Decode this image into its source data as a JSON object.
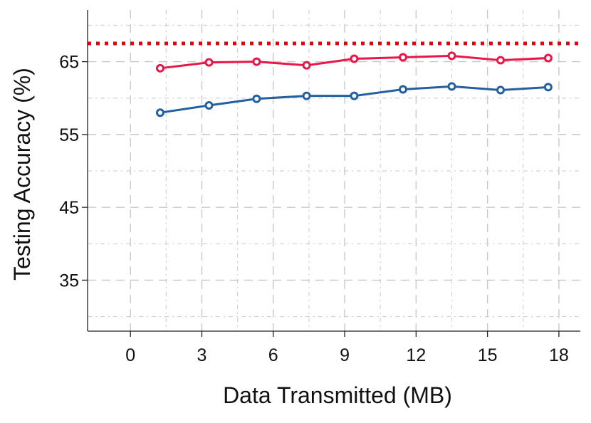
{
  "chart_data": {
    "type": "line",
    "title": "",
    "xlabel": "Data Transmitted (MB)",
    "ylabel": "Testing Accuracy (%)",
    "xlim": [
      -1.8,
      18.9
    ],
    "ylim": [
      28,
      72.1
    ],
    "xticks": [
      0,
      3,
      6,
      9,
      12,
      15,
      18
    ],
    "xtick_labels": [
      "0",
      "3",
      "6",
      "9",
      "12",
      "15",
      "18"
    ],
    "yticks": [
      35,
      45,
      55,
      65
    ],
    "ytick_labels": [
      "35",
      "45",
      "55",
      "65"
    ],
    "minor_yticks": [
      30,
      40,
      50,
      60,
      70
    ],
    "grid": true,
    "legend": "none",
    "reference_line": {
      "y": 67.5,
      "style": "dotted",
      "color": "#ee0000"
    },
    "series": [
      {
        "color": "#e8174a",
        "x": [
          1.25,
          3.3,
          5.3,
          7.4,
          9.4,
          11.45,
          13.5,
          15.55,
          17.55
        ],
        "y": [
          64.1,
          64.9,
          65.0,
          64.5,
          65.4,
          65.6,
          65.8,
          65.2,
          65.5
        ]
      },
      {
        "color": "#2460a0",
        "x": [
          1.25,
          3.3,
          5.3,
          7.4,
          9.4,
          11.45,
          13.5,
          15.55,
          17.55
        ],
        "y": [
          58.0,
          59.0,
          59.9,
          60.3,
          60.3,
          61.2,
          61.6,
          61.1,
          61.5
        ]
      }
    ]
  }
}
